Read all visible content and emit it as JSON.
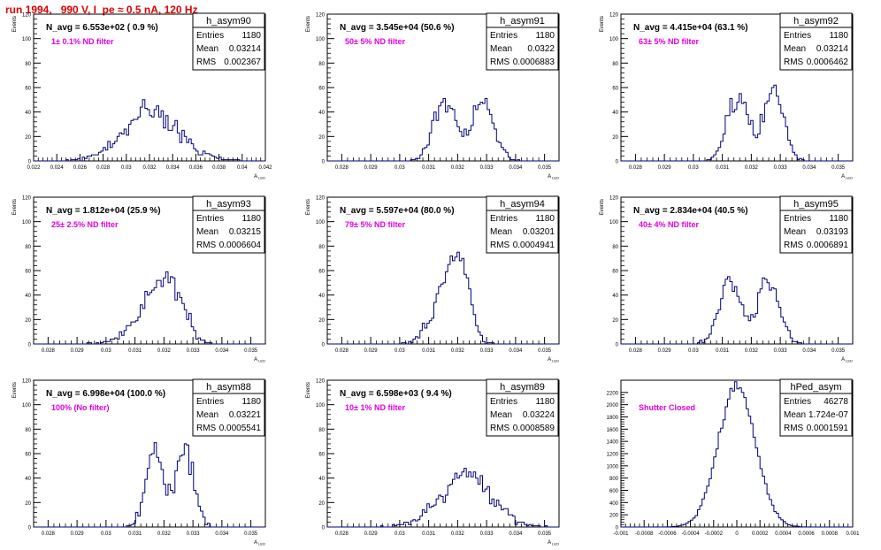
{
  "title": "run 1994,   990 V, I_pe ≈ 0.5 nA, 120 Hz",
  "stats_labels": {
    "entries": "Entries",
    "mean": "Mean",
    "rms": "RMS"
  },
  "colors": {
    "title": "#e00000",
    "filter_label": "#e000e0",
    "histogram": "#00007a",
    "axis": "#000000"
  },
  "chart_data": [
    {
      "type": "histogram",
      "name": "h_asym90",
      "navg": "N_avg = 6.553e+02 ( 0.9 %)",
      "filter": "1± 0.1% ND filter",
      "entries": "1180",
      "mean": "0.03214",
      "rms": "0.002367",
      "xlabel": "A_LED",
      "ylabel": "Events",
      "xlim": [
        0.022,
        0.042
      ],
      "ylim": [
        0,
        120
      ],
      "xticks": [
        "0.022",
        "0.024",
        "0.026",
        "0.028",
        "0.03",
        "0.032",
        "0.034",
        "0.036",
        "0.038",
        "0.04",
        "0.042"
      ],
      "yticks": [
        "0",
        "20",
        "40",
        "60",
        "80",
        "100",
        "120"
      ],
      "bins": {
        "mu": 0.03214,
        "sigma": 0.002367,
        "n": 1180,
        "shape": "gauss",
        "range": [
          0.022,
          0.042
        ],
        "count": 100
      }
    },
    {
      "type": "histogram",
      "name": "h_asym91",
      "navg": "N_avg = 3.545e+04 (50.6 %)",
      "filter": "50± 5% ND filter",
      "entries": "1180",
      "mean": "0.0322",
      "rms": "0.0006883",
      "xlabel": "A_LED",
      "ylabel": "Events",
      "xlim": [
        0.0275,
        0.0355
      ],
      "ylim": [
        0,
        120
      ],
      "xticks": [
        "0.028",
        "0.029",
        "0.03",
        "0.031",
        "0.032",
        "0.033",
        "0.034",
        "0.035"
      ],
      "yticks": [
        "0",
        "20",
        "40",
        "60",
        "80",
        "100",
        "120"
      ],
      "bins": {
        "mu": 0.0322,
        "sigma": 0.0006883,
        "n": 1180,
        "shape": "bimodal",
        "range": [
          0.0275,
          0.0355
        ],
        "count": 100
      }
    },
    {
      "type": "histogram",
      "name": "h_asym92",
      "navg": "N_avg = 4.415e+04 (63.1 %)",
      "filter": "63± 5% ND filter",
      "entries": "1180",
      "mean": "0.03214",
      "rms": "0.0006462",
      "xlabel": "A_LED",
      "ylabel": "Events",
      "xlim": [
        0.0275,
        0.0355
      ],
      "ylim": [
        0,
        120
      ],
      "xticks": [
        "0.028",
        "0.029",
        "0.03",
        "0.031",
        "0.032",
        "0.033",
        "0.034",
        "0.035"
      ],
      "yticks": [
        "0",
        "20",
        "40",
        "60",
        "80",
        "100",
        "120"
      ],
      "bins": {
        "mu": 0.03214,
        "sigma": 0.0006462,
        "n": 1180,
        "shape": "bimodal",
        "range": [
          0.0275,
          0.0355
        ],
        "count": 100
      }
    },
    {
      "type": "histogram",
      "name": "h_asym93",
      "navg": "N_avg = 1.812e+04 (25.9 %)",
      "filter": "25± 2.5% ND filter",
      "entries": "1180",
      "mean": "0.03215",
      "rms": "0.0006604",
      "xlabel": "A_LED",
      "ylabel": "Events",
      "xlim": [
        0.0275,
        0.0355
      ],
      "ylim": [
        0,
        120
      ],
      "xticks": [
        "0.028",
        "0.029",
        "0.03",
        "0.031",
        "0.032",
        "0.033",
        "0.034",
        "0.035"
      ],
      "yticks": [
        "0",
        "20",
        "40",
        "60",
        "80",
        "100",
        "120"
      ],
      "bins": {
        "mu": 0.03215,
        "sigma": 0.0006604,
        "n": 1180,
        "shape": "skew",
        "range": [
          0.0275,
          0.0355
        ],
        "count": 100
      }
    },
    {
      "type": "histogram",
      "name": "h_asym94",
      "navg": "N_avg = 5.597e+04 (80.0 %)",
      "filter": "79± 5% ND filter",
      "entries": "1180",
      "mean": "0.03201",
      "rms": "0.0004941",
      "xlabel": "A_LED",
      "ylabel": "Events",
      "xlim": [
        0.0275,
        0.0355
      ],
      "ylim": [
        0,
        120
      ],
      "xticks": [
        "0.028",
        "0.029",
        "0.03",
        "0.031",
        "0.032",
        "0.033",
        "0.034",
        "0.035"
      ],
      "yticks": [
        "0",
        "20",
        "40",
        "60",
        "80",
        "100",
        "120"
      ],
      "bins": {
        "mu": 0.03201,
        "sigma": 0.0004941,
        "n": 1180,
        "shape": "skew",
        "range": [
          0.0275,
          0.0355
        ],
        "count": 100
      }
    },
    {
      "type": "histogram",
      "name": "h_asym95",
      "navg": "N_avg = 2.834e+04 (40.5 %)",
      "filter": "40± 4% ND filter",
      "entries": "1180",
      "mean": "0.03193",
      "rms": "0.0006891",
      "xlabel": "A_LED",
      "ylabel": "Events",
      "xlim": [
        0.0275,
        0.0355
      ],
      "ylim": [
        0,
        120
      ],
      "xticks": [
        "0.028",
        "0.029",
        "0.03",
        "0.031",
        "0.032",
        "0.033",
        "0.034",
        "0.035"
      ],
      "yticks": [
        "0",
        "20",
        "40",
        "60",
        "80",
        "100",
        "120"
      ],
      "bins": {
        "mu": 0.03193,
        "sigma": 0.0006891,
        "n": 1180,
        "shape": "bimodal",
        "range": [
          0.0275,
          0.0355
        ],
        "count": 100
      }
    },
    {
      "type": "histogram",
      "name": "h_asym88",
      "navg": "N_avg = 6.998e+04 (100.0 %)",
      "filter": "100% (No filter)",
      "entries": "1180",
      "mean": "0.03221",
      "rms": "0.0005541",
      "xlabel": "A_LED",
      "ylabel": "Events",
      "xlim": [
        0.0275,
        0.0355
      ],
      "ylim": [
        0,
        120
      ],
      "xticks": [
        "0.028",
        "0.029",
        "0.03",
        "0.031",
        "0.032",
        "0.033",
        "0.034",
        "0.035"
      ],
      "yticks": [
        "0",
        "20",
        "40",
        "60",
        "80",
        "100",
        "120"
      ],
      "bins": {
        "mu": 0.03221,
        "sigma": 0.0005541,
        "n": 1180,
        "shape": "bimodal",
        "range": [
          0.0275,
          0.0355
        ],
        "count": 100
      }
    },
    {
      "type": "histogram",
      "name": "h_asym89",
      "navg": "N_avg = 6.598e+03 ( 9.4 %)",
      "filter": "10± 1% ND filter",
      "entries": "1180",
      "mean": "0.03224",
      "rms": "0.0008589",
      "xlabel": "A_LED",
      "ylabel": "Events",
      "xlim": [
        0.0275,
        0.0355
      ],
      "ylim": [
        0,
        120
      ],
      "xticks": [
        "0.028",
        "0.029",
        "0.03",
        "0.031",
        "0.032",
        "0.033",
        "0.034",
        "0.035"
      ],
      "yticks": [
        "0",
        "20",
        "40",
        "60",
        "80",
        "100",
        "120"
      ],
      "bins": {
        "mu": 0.03224,
        "sigma": 0.0008589,
        "n": 1180,
        "shape": "gauss",
        "range": [
          0.0275,
          0.0355
        ],
        "count": 100
      }
    },
    {
      "type": "histogram",
      "name": "hPed_asym",
      "navg": "",
      "filter": "Shutter Closed",
      "entries": "46278",
      "mean": "1.724e-07",
      "rms": "0.0001591",
      "xlabel": "",
      "ylabel": "",
      "xlim": [
        -0.001,
        0.001
      ],
      "ylim": [
        0,
        2400
      ],
      "xticks": [
        "-0.001",
        "-0.0008",
        "-0.0006",
        "-0.0004",
        "-0.0002",
        "0",
        "0.0002",
        "0.0004",
        "0.0006",
        "0.0008",
        "0.001"
      ],
      "yticks": [
        "0",
        "200",
        "400",
        "600",
        "800",
        "1000",
        "1200",
        "1400",
        "1600",
        "1800",
        "2000",
        "2200"
      ],
      "bins": {
        "mu": 0.0,
        "sigma": 0.0001591,
        "n": 46278,
        "shape": "gauss",
        "range": [
          -0.001,
          0.001
        ],
        "count": 100
      }
    }
  ]
}
